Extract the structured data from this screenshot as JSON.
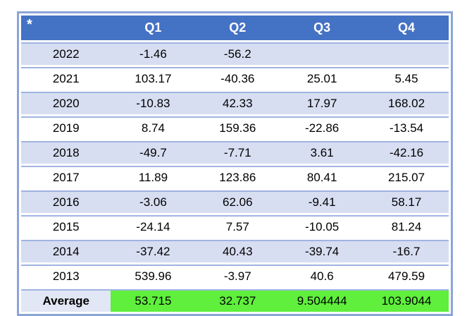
{
  "colors": {
    "header_bg": "#4472C4",
    "band_bg": "#D7DEF1",
    "row_border": "#A0B4E2",
    "outer_border": "#8CA5D8",
    "average_label_bg": "#E2E7F5",
    "average_value_bg": "#5FEF3C",
    "header_text": "#ffffff",
    "cell_text": "#000000"
  },
  "chart_data": {
    "type": "table",
    "corner_label": "*",
    "columns": [
      "Q1",
      "Q2",
      "Q3",
      "Q4"
    ],
    "rows": [
      {
        "year": "2022",
        "values": [
          "-1.46",
          "-56.2",
          "",
          ""
        ]
      },
      {
        "year": "2021",
        "values": [
          "103.17",
          "-40.36",
          "25.01",
          "5.45"
        ]
      },
      {
        "year": "2020",
        "values": [
          "-10.83",
          "42.33",
          "17.97",
          "168.02"
        ]
      },
      {
        "year": "2019",
        "values": [
          "8.74",
          "159.36",
          "-22.86",
          "-13.54"
        ]
      },
      {
        "year": "2018",
        "values": [
          "-49.7",
          "-7.71",
          "3.61",
          "-42.16"
        ]
      },
      {
        "year": "2017",
        "values": [
          "11.89",
          "123.86",
          "80.41",
          "215.07"
        ]
      },
      {
        "year": "2016",
        "values": [
          "-3.06",
          "62.06",
          "-9.41",
          "58.17"
        ]
      },
      {
        "year": "2015",
        "values": [
          "-24.14",
          "7.57",
          "-10.05",
          "81.24"
        ]
      },
      {
        "year": "2014",
        "values": [
          "-37.42",
          "40.43",
          "-39.74",
          "-16.7"
        ]
      },
      {
        "year": "2013",
        "values": [
          "539.96",
          "-3.97",
          "40.6",
          "479.59"
        ]
      }
    ],
    "footer": {
      "label": "Average",
      "values": [
        "53.715",
        "32.737",
        "9.504444",
        "103.9044"
      ]
    }
  }
}
